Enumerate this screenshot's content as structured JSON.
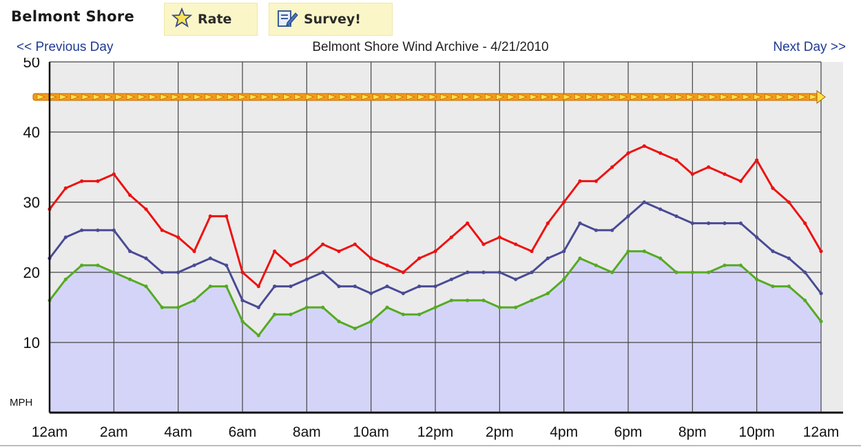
{
  "header": {
    "spot_name": "Belmont Shore",
    "rate_label": "Rate",
    "survey_label": "Survey!",
    "rate_icon": "star-icon",
    "survey_icon": "survey-form-icon"
  },
  "nav": {
    "prev_label": "<< Previous Day",
    "next_label": "Next Day >>",
    "title": "Belmont Shore Wind Archive - 4/21/2010"
  },
  "colors": {
    "gust": "#ee1111",
    "average": "#4a4a96",
    "lull": "#55aa22",
    "fill": "#d4d4f8",
    "plot_bg": "#ebebeb",
    "grid": "#444444",
    "arrow": "#f29a1a"
  },
  "chart_data": {
    "type": "line",
    "title": "Belmont Shore Wind Archive - 4/21/2010",
    "ylabel": "MPH",
    "xlabel": "",
    "ylim": [
      0,
      50
    ],
    "y_ticks": [
      10,
      20,
      30,
      40,
      50
    ],
    "x_range_hours": [
      0,
      24
    ],
    "x_tick_labels": [
      "12am",
      "2am",
      "4am",
      "6am",
      "8am",
      "10am",
      "12pm",
      "2pm",
      "4pm",
      "6pm",
      "8pm",
      "10pm",
      "12am"
    ],
    "grid": true,
    "shaded_series": "Lull",
    "direction_arrows_at": 45,
    "x_hours": [
      0,
      0.5,
      1,
      1.5,
      2,
      2.5,
      3,
      3.5,
      4,
      4.5,
      5,
      5.5,
      6,
      6.5,
      7,
      7.5,
      8,
      8.5,
      9,
      9.5,
      10,
      10.5,
      11,
      11.5,
      12,
      12.5,
      13,
      13.5,
      14,
      14.5,
      15,
      15.5,
      16,
      16.5,
      17,
      17.5,
      18,
      18.5,
      19,
      19.5,
      20,
      20.5,
      21,
      21.5,
      22,
      22.5,
      23,
      23.5,
      24
    ],
    "series": [
      {
        "values": [
          29,
          32,
          33,
          33,
          34,
          31,
          29,
          26,
          25,
          23,
          28,
          28,
          20,
          18,
          23,
          21,
          22,
          24,
          23,
          24,
          22,
          21,
          20,
          22,
          23,
          25,
          27,
          24,
          25,
          24,
          23,
          27,
          30,
          33,
          33,
          35,
          37,
          38,
          37,
          36,
          34,
          35,
          34,
          33,
          36,
          32,
          30,
          27,
          23
        ]
      },
      {
        "values": [
          22,
          25,
          26,
          26,
          26,
          23,
          22,
          20,
          20,
          21,
          22,
          21,
          16,
          15,
          18,
          18,
          19,
          20,
          18,
          18,
          17,
          18,
          17,
          18,
          18,
          19,
          20,
          20,
          20,
          19,
          20,
          22,
          23,
          27,
          26,
          26,
          28,
          30,
          29,
          28,
          27,
          27,
          27,
          27,
          25,
          23,
          22,
          20,
          17
        ]
      },
      {
        "values": [
          16,
          19,
          21,
          21,
          20,
          19,
          18,
          15,
          15,
          16,
          18,
          18,
          13,
          11,
          14,
          14,
          15,
          15,
          13,
          12,
          13,
          15,
          14,
          14,
          15,
          16,
          16,
          16,
          15,
          15,
          16,
          17,
          19,
          22,
          21,
          20,
          23,
          23,
          22,
          20,
          20,
          20,
          21,
          21,
          19,
          18,
          18,
          16,
          13
        ]
      }
    ]
  }
}
